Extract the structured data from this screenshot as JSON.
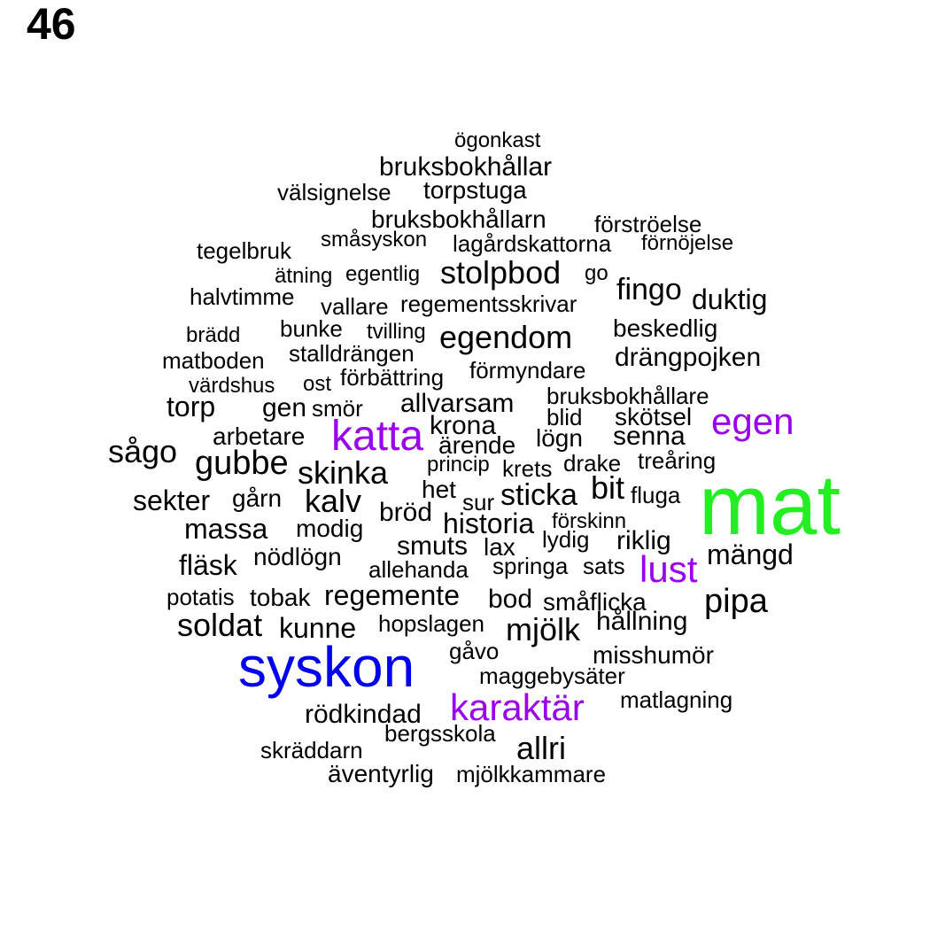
{
  "page_number": "46",
  "colors": {
    "default": "#000000",
    "green": "#22ee22",
    "blue": "#0000ee",
    "purple": "#9900ee"
  },
  "words": [
    {
      "text": "ögonkast",
      "color": "default"
    },
    {
      "text": "bruksbokhållar",
      "color": "default"
    },
    {
      "text": "välsignelse",
      "color": "default"
    },
    {
      "text": "torpstuga",
      "color": "default"
    },
    {
      "text": "bruksbokhållarn",
      "color": "default"
    },
    {
      "text": "förströelse",
      "color": "default"
    },
    {
      "text": "småsyskon",
      "color": "default"
    },
    {
      "text": "lagårdskattorna",
      "color": "default"
    },
    {
      "text": "förnöjelse",
      "color": "default"
    },
    {
      "text": "tegelbruk",
      "color": "default"
    },
    {
      "text": "ätning",
      "color": "default"
    },
    {
      "text": "egentlig",
      "color": "default"
    },
    {
      "text": "stolpbod",
      "color": "default"
    },
    {
      "text": "go",
      "color": "default"
    },
    {
      "text": "fingo",
      "color": "default"
    },
    {
      "text": "halvtimme",
      "color": "default"
    },
    {
      "text": "duktig",
      "color": "default"
    },
    {
      "text": "vallare",
      "color": "default"
    },
    {
      "text": "regementsskrivar",
      "color": "default"
    },
    {
      "text": "brädd",
      "color": "default"
    },
    {
      "text": "bunke",
      "color": "default"
    },
    {
      "text": "tvilling",
      "color": "default"
    },
    {
      "text": "egendom",
      "color": "default"
    },
    {
      "text": "beskedlig",
      "color": "default"
    },
    {
      "text": "matboden",
      "color": "default"
    },
    {
      "text": "stalldrängen",
      "color": "default"
    },
    {
      "text": "drängpojken",
      "color": "default"
    },
    {
      "text": "förmyndare",
      "color": "default"
    },
    {
      "text": "värdshus",
      "color": "default"
    },
    {
      "text": "ost",
      "color": "default"
    },
    {
      "text": "förbättring",
      "color": "default"
    },
    {
      "text": "bruksbokhållare",
      "color": "default"
    },
    {
      "text": "torp",
      "color": "default"
    },
    {
      "text": "gen",
      "color": "default"
    },
    {
      "text": "smör",
      "color": "default"
    },
    {
      "text": "allvarsam",
      "color": "default"
    },
    {
      "text": "blid",
      "color": "default"
    },
    {
      "text": "skötsel",
      "color": "default"
    },
    {
      "text": "egen",
      "color": "purple"
    },
    {
      "text": "krona",
      "color": "default"
    },
    {
      "text": "arbetare",
      "color": "default"
    },
    {
      "text": "katta",
      "color": "purple"
    },
    {
      "text": "lögn",
      "color": "default"
    },
    {
      "text": "senna",
      "color": "default"
    },
    {
      "text": "ärende",
      "color": "default"
    },
    {
      "text": "sågo",
      "color": "default"
    },
    {
      "text": "gubbe",
      "color": "default"
    },
    {
      "text": "treåring",
      "color": "default"
    },
    {
      "text": "princip",
      "color": "default"
    },
    {
      "text": "krets",
      "color": "default"
    },
    {
      "text": "drake",
      "color": "default"
    },
    {
      "text": "skinka",
      "color": "default"
    },
    {
      "text": "het",
      "color": "default"
    },
    {
      "text": "bit",
      "color": "default"
    },
    {
      "text": "mat",
      "color": "green"
    },
    {
      "text": "fluga",
      "color": "default"
    },
    {
      "text": "sekter",
      "color": "default"
    },
    {
      "text": "gårn",
      "color": "default"
    },
    {
      "text": "kalv",
      "color": "default"
    },
    {
      "text": "sur",
      "color": "default"
    },
    {
      "text": "sticka",
      "color": "default"
    },
    {
      "text": "bröd",
      "color": "default"
    },
    {
      "text": "förskinn",
      "color": "default"
    },
    {
      "text": "historia",
      "color": "default"
    },
    {
      "text": "massa",
      "color": "default"
    },
    {
      "text": "modig",
      "color": "default"
    },
    {
      "text": "lydig",
      "color": "default"
    },
    {
      "text": "riklig",
      "color": "default"
    },
    {
      "text": "smuts",
      "color": "default"
    },
    {
      "text": "lax",
      "color": "default"
    },
    {
      "text": "mängd",
      "color": "default"
    },
    {
      "text": "nödlögn",
      "color": "default"
    },
    {
      "text": "fläsk",
      "color": "default"
    },
    {
      "text": "lust",
      "color": "purple"
    },
    {
      "text": "allehanda",
      "color": "default"
    },
    {
      "text": "springa",
      "color": "default"
    },
    {
      "text": "sats",
      "color": "default"
    },
    {
      "text": "potatis",
      "color": "default"
    },
    {
      "text": "tobak",
      "color": "default"
    },
    {
      "text": "regemente",
      "color": "default"
    },
    {
      "text": "bod",
      "color": "default"
    },
    {
      "text": "småflicka",
      "color": "default"
    },
    {
      "text": "pipa",
      "color": "default"
    },
    {
      "text": "hållning",
      "color": "default"
    },
    {
      "text": "hopslagen",
      "color": "default"
    },
    {
      "text": "soldat",
      "color": "default"
    },
    {
      "text": "kunne",
      "color": "default"
    },
    {
      "text": "mjölk",
      "color": "default"
    },
    {
      "text": "gåvo",
      "color": "default"
    },
    {
      "text": "misshumör",
      "color": "default"
    },
    {
      "text": "syskon",
      "color": "blue"
    },
    {
      "text": "maggebysäter",
      "color": "default"
    },
    {
      "text": "matlagning",
      "color": "default"
    },
    {
      "text": "karaktär",
      "color": "purple"
    },
    {
      "text": "rödkindad",
      "color": "default"
    },
    {
      "text": "bergsskola",
      "color": "default"
    },
    {
      "text": "allri",
      "color": "default"
    },
    {
      "text": "skräddarn",
      "color": "default"
    },
    {
      "text": "äventyrlig",
      "color": "default"
    },
    {
      "text": "mjölkkammare",
      "color": "default"
    }
  ]
}
